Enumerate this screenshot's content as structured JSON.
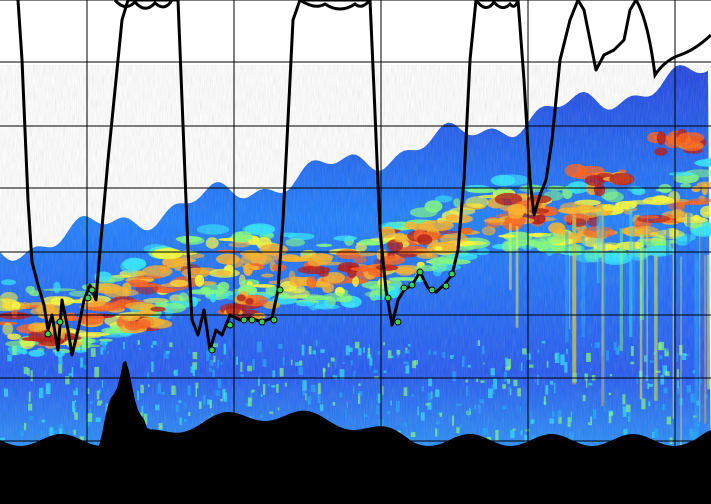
{
  "view": {
    "kind": "echogram",
    "gridlines": true,
    "colormap": [
      "#1f2bd1",
      "#1b5bff",
      "#17a7ff",
      "#28e6ff",
      "#7dff7a",
      "#ffff2f",
      "#ffb21d",
      "#ff5a12",
      "#b30d0a"
    ],
    "seabed_color": "#000000",
    "track_color": "#000000",
    "marker_color": "#34d84a"
  }
}
